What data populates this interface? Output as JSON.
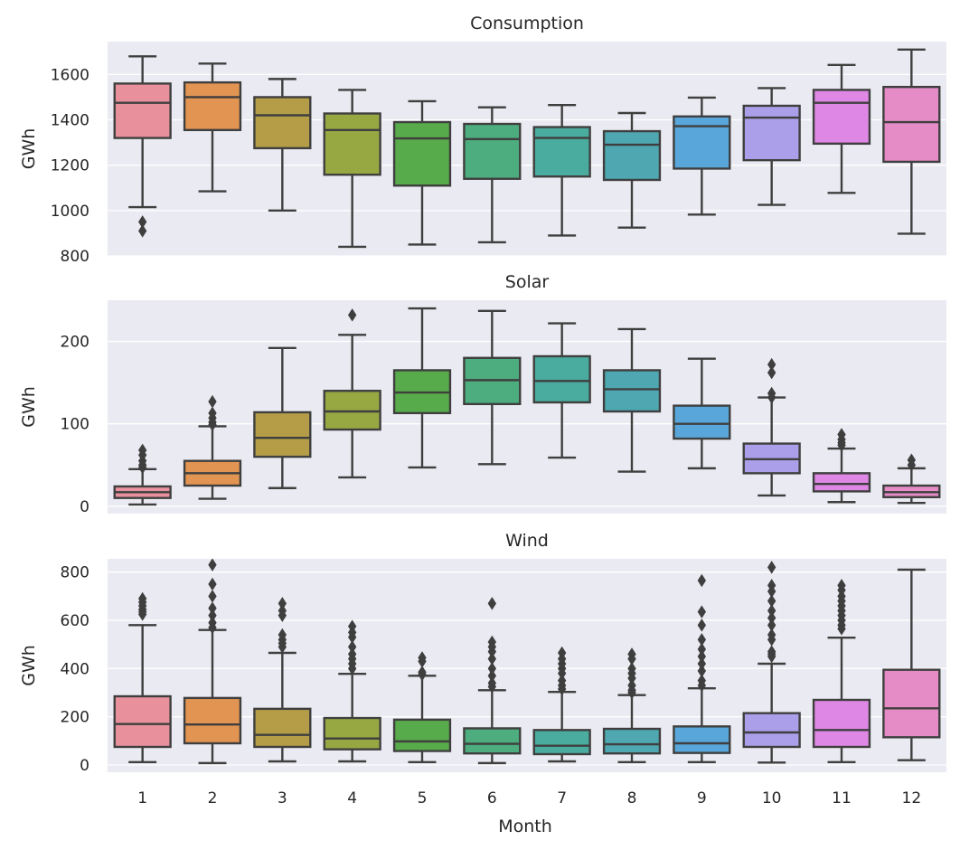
{
  "chart_data": [
    {
      "type": "box",
      "title": "Consumption",
      "ylabel": "GWh",
      "xlabel": "",
      "ylim": [
        800,
        1745
      ],
      "yticks": [
        800,
        1000,
        1200,
        1400,
        1600
      ],
      "categories": [
        "1",
        "2",
        "3",
        "4",
        "5",
        "6",
        "7",
        "8",
        "9",
        "10",
        "11",
        "12"
      ],
      "boxes": [
        {
          "min": 1015,
          "q1": 1320,
          "median": 1475,
          "q3": 1560,
          "max": 1680,
          "outliers": [
            950,
            910
          ]
        },
        {
          "min": 1085,
          "q1": 1355,
          "median": 1500,
          "q3": 1565,
          "max": 1648,
          "outliers": []
        },
        {
          "min": 1000,
          "q1": 1275,
          "median": 1420,
          "q3": 1500,
          "max": 1580,
          "outliers": []
        },
        {
          "min": 840,
          "q1": 1158,
          "median": 1355,
          "q3": 1428,
          "max": 1532,
          "outliers": []
        },
        {
          "min": 850,
          "q1": 1110,
          "median": 1318,
          "q3": 1390,
          "max": 1482,
          "outliers": []
        },
        {
          "min": 860,
          "q1": 1140,
          "median": 1315,
          "q3": 1382,
          "max": 1455,
          "outliers": []
        },
        {
          "min": 890,
          "q1": 1150,
          "median": 1320,
          "q3": 1368,
          "max": 1465,
          "outliers": []
        },
        {
          "min": 925,
          "q1": 1135,
          "median": 1290,
          "q3": 1350,
          "max": 1430,
          "outliers": []
        },
        {
          "min": 982,
          "q1": 1185,
          "median": 1372,
          "q3": 1415,
          "max": 1498,
          "outliers": []
        },
        {
          "min": 1025,
          "q1": 1222,
          "median": 1410,
          "q3": 1462,
          "max": 1540,
          "outliers": []
        },
        {
          "min": 1078,
          "q1": 1295,
          "median": 1475,
          "q3": 1532,
          "max": 1642,
          "outliers": []
        },
        {
          "min": 898,
          "q1": 1215,
          "median": 1390,
          "q3": 1545,
          "max": 1710,
          "outliers": []
        }
      ]
    },
    {
      "type": "box",
      "title": "Solar",
      "ylabel": "GWh",
      "xlabel": "",
      "ylim": [
        -9,
        250
      ],
      "yticks": [
        0,
        100,
        200
      ],
      "categories": [
        "1",
        "2",
        "3",
        "4",
        "5",
        "6",
        "7",
        "8",
        "9",
        "10",
        "11",
        "12"
      ],
      "boxes": [
        {
          "min": 2,
          "q1": 10,
          "median": 17,
          "q3": 24,
          "max": 45,
          "outliers": [
            68,
            62,
            55,
            50,
            47
          ]
        },
        {
          "min": 9,
          "q1": 25,
          "median": 40,
          "q3": 55,
          "max": 97,
          "outliers": [
            127,
            113,
            107,
            102,
            99
          ]
        },
        {
          "min": 22,
          "q1": 60,
          "median": 83,
          "q3": 114,
          "max": 192,
          "outliers": []
        },
        {
          "min": 35,
          "q1": 93,
          "median": 115,
          "q3": 140,
          "max": 208,
          "outliers": [
            232
          ]
        },
        {
          "min": 47,
          "q1": 113,
          "median": 138,
          "q3": 165,
          "max": 240,
          "outliers": []
        },
        {
          "min": 51,
          "q1": 124,
          "median": 153,
          "q3": 180,
          "max": 237,
          "outliers": []
        },
        {
          "min": 59,
          "q1": 126,
          "median": 152,
          "q3": 182,
          "max": 222,
          "outliers": []
        },
        {
          "min": 42,
          "q1": 115,
          "median": 142,
          "q3": 165,
          "max": 215,
          "outliers": []
        },
        {
          "min": 46,
          "q1": 82,
          "median": 100,
          "q3": 122,
          "max": 179,
          "outliers": []
        },
        {
          "min": 13,
          "q1": 40,
          "median": 57,
          "q3": 76,
          "max": 132,
          "outliers": [
            172,
            162,
            137,
            132
          ]
        },
        {
          "min": 5,
          "q1": 18,
          "median": 27,
          "q3": 40,
          "max": 70,
          "outliers": [
            87,
            81,
            77,
            74
          ]
        },
        {
          "min": 4,
          "q1": 11,
          "median": 17,
          "q3": 25,
          "max": 46,
          "outliers": [
            56,
            50
          ]
        }
      ]
    },
    {
      "type": "box",
      "title": "Wind",
      "ylabel": "GWh",
      "xlabel": "Month",
      "ylim": [
        -30,
        855
      ],
      "yticks": [
        0,
        200,
        400,
        600,
        800
      ],
      "categories": [
        "1",
        "2",
        "3",
        "4",
        "5",
        "6",
        "7",
        "8",
        "9",
        "10",
        "11",
        "12"
      ],
      "boxes": [
        {
          "min": 12,
          "q1": 75,
          "median": 170,
          "q3": 285,
          "max": 580,
          "outliers": [
            690,
            675,
            660,
            645,
            635,
            625
          ]
        },
        {
          "min": 8,
          "q1": 90,
          "median": 168,
          "q3": 278,
          "max": 560,
          "outliers": [
            830,
            750,
            700,
            650,
            620,
            590,
            570
          ]
        },
        {
          "min": 15,
          "q1": 75,
          "median": 125,
          "q3": 233,
          "max": 465,
          "outliers": [
            670,
            640,
            620,
            540,
            520,
            505,
            490
          ]
        },
        {
          "min": 15,
          "q1": 65,
          "median": 110,
          "q3": 195,
          "max": 378,
          "outliers": [
            575,
            550,
            530,
            490,
            460,
            440,
            420,
            400
          ]
        },
        {
          "min": 12,
          "q1": 58,
          "median": 98,
          "q3": 188,
          "max": 370,
          "outliers": [
            445,
            430,
            385,
            375
          ]
        },
        {
          "min": 8,
          "q1": 48,
          "median": 88,
          "q3": 152,
          "max": 310,
          "outliers": [
            670,
            510,
            490,
            470,
            440,
            400,
            370,
            340,
            325
          ]
        },
        {
          "min": 15,
          "q1": 45,
          "median": 80,
          "q3": 145,
          "max": 303,
          "outliers": [
            465,
            440,
            420,
            400,
            380,
            350,
            330,
            315
          ]
        },
        {
          "min": 12,
          "q1": 48,
          "median": 86,
          "q3": 150,
          "max": 290,
          "outliers": [
            460,
            440,
            400,
            380,
            360,
            330,
            310,
            300
          ]
        },
        {
          "min": 12,
          "q1": 50,
          "median": 90,
          "q3": 160,
          "max": 318,
          "outliers": [
            765,
            635,
            580,
            520,
            480,
            450,
            420,
            390,
            350,
            330
          ]
        },
        {
          "min": 10,
          "q1": 75,
          "median": 135,
          "q3": 215,
          "max": 420,
          "outliers": [
            820,
            745,
            720,
            680,
            640,
            610,
            580,
            540,
            520,
            470,
            460,
            450
          ]
        },
        {
          "min": 12,
          "q1": 75,
          "median": 145,
          "q3": 270,
          "max": 528,
          "outliers": [
            745,
            725,
            700,
            680,
            660,
            640,
            620,
            600,
            580,
            565
          ]
        },
        {
          "min": 20,
          "q1": 115,
          "median": 235,
          "q3": 395,
          "max": 810,
          "outliers": []
        }
      ]
    }
  ],
  "palette": [
    "#e8919c",
    "#e29452",
    "#b59d48",
    "#97a843",
    "#58ab4a",
    "#4dad7f",
    "#4aab9f",
    "#4ea7b1",
    "#59a7da",
    "#ac9fe9",
    "#df87e4",
    "#e58cc6"
  ]
}
